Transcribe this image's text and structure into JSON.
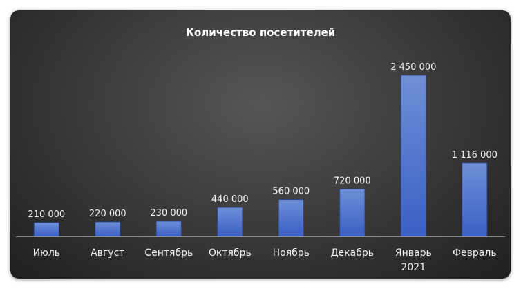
{
  "chart_data": {
    "type": "bar",
    "title": "Количество посетителей",
    "xlabel": "",
    "ylabel": "",
    "categories": [
      [
        "Июль"
      ],
      [
        "Август"
      ],
      [
        "Сентябрь"
      ],
      [
        "Октябрь"
      ],
      [
        "Ноябрь"
      ],
      [
        "Декабрь"
      ],
      [
        "Январь",
        "2021"
      ],
      [
        "Февраль"
      ]
    ],
    "values": [
      210000,
      220000,
      230000,
      440000,
      560000,
      720000,
      2450000,
      1116000
    ],
    "value_labels": [
      "210 000",
      "220 000",
      "230 000",
      "440 000",
      "560 000",
      "720 000",
      "2 450 000",
      "1 116 000"
    ],
    "ylim": [
      0,
      2450000
    ],
    "grid": false,
    "legend": "none",
    "colors": {
      "bar_top": "#6f8fd6",
      "bar_bottom": "#3a5fc4",
      "bar_edge": "#2c4a9a",
      "axis": "#8a8a8a",
      "text": "#f2f2f2"
    }
  }
}
